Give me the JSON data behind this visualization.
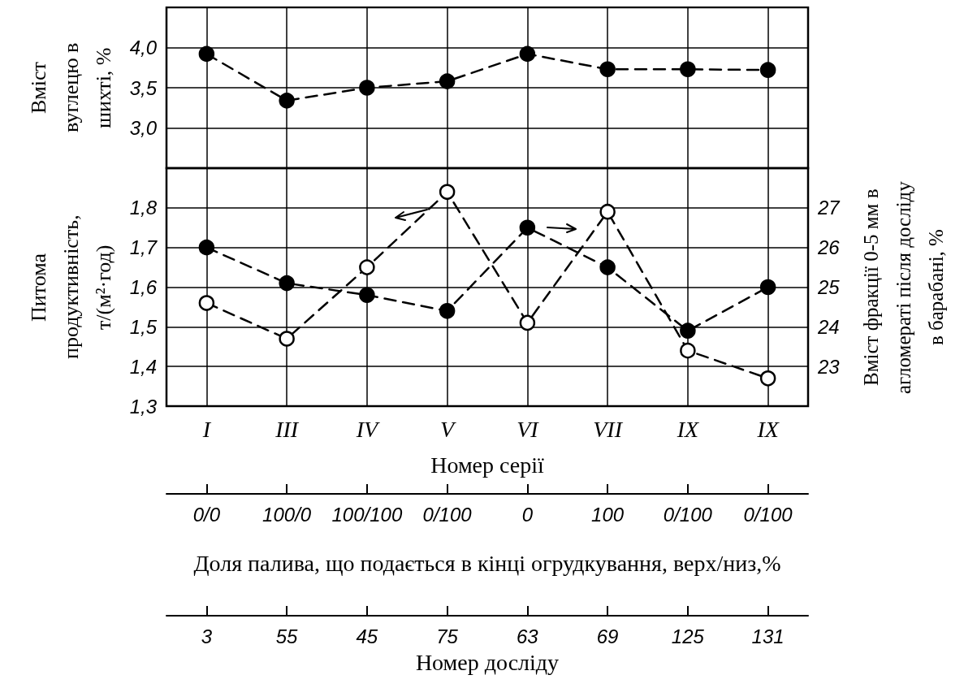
{
  "chart_data": [
    {
      "type": "line",
      "ylabel": "Вміст вуглецю в шихті, %",
      "categories": [
        null,
        null,
        null,
        null,
        null,
        null,
        null,
        null
      ],
      "ylim": [
        2.5,
        4.5
      ],
      "yticks": [
        {
          "value": 3.0,
          "label": "3,0"
        },
        {
          "value": 3.5,
          "label": "3,5"
        },
        {
          "value": 4.0,
          "label": "4,0"
        }
      ],
      "grid": true,
      "tick_labels": "y",
      "marker": "circle",
      "line_style": "dashed",
      "series": [
        {
          "color": "#000000",
          "values": [
            3.92,
            3.34,
            3.5,
            3.58,
            3.92,
            3.73,
            3.73,
            3.72
          ]
        }
      ]
    },
    {
      "type": "line",
      "xlabel": "Номер серії",
      "ylabel": "Питома продуктивність, т/(м²·год)",
      "y2label": "Вміст фракції 0-5 мм в агломераті після досліду в барабані, %",
      "categories": [
        "I",
        "III",
        "IV",
        "V",
        "VI",
        "VII",
        "IX",
        "IX"
      ],
      "ylim": [
        1.3,
        1.9
      ],
      "yticks": [
        {
          "value": 1.3,
          "label": "1,3"
        },
        {
          "value": 1.4,
          "label": "1,4"
        },
        {
          "value": 1.5,
          "label": "1,5"
        },
        {
          "value": 1.6,
          "label": "1,6"
        },
        {
          "value": 1.7,
          "label": "1,7"
        },
        {
          "value": 1.8,
          "label": "1,8"
        }
      ],
      "y2lim": [
        22,
        28
      ],
      "y2ticks": [
        23,
        24,
        25,
        26,
        27
      ],
      "grid": true,
      "marker": "circle",
      "line_style": "dashed",
      "series": [
        {
          "color": "#000000",
          "values": [
            1.56,
            1.47,
            1.65,
            1.84,
            1.51,
            1.79,
            1.44,
            1.37
          ]
        },
        {
          "color": "#000000",
          "axis": "y2",
          "values": [
            26.0,
            25.1,
            24.8,
            24.4,
            26.5,
            25.5,
            23.9,
            25.0
          ]
        }
      ]
    },
    {
      "type": "other",
      "categories": [
        "0/0",
        "100/0",
        "100/100",
        "0/100",
        "0",
        "100",
        "0/100",
        "0/100"
      ],
      "xlabel": "Доля палива, що подається в кінці огрудкування, верх/низ,%"
    },
    {
      "type": "other",
      "categories": [
        "3",
        "55",
        "45",
        "75",
        "63",
        "69",
        "125",
        "131"
      ],
      "xlabel": "Номер досліду"
    }
  ]
}
